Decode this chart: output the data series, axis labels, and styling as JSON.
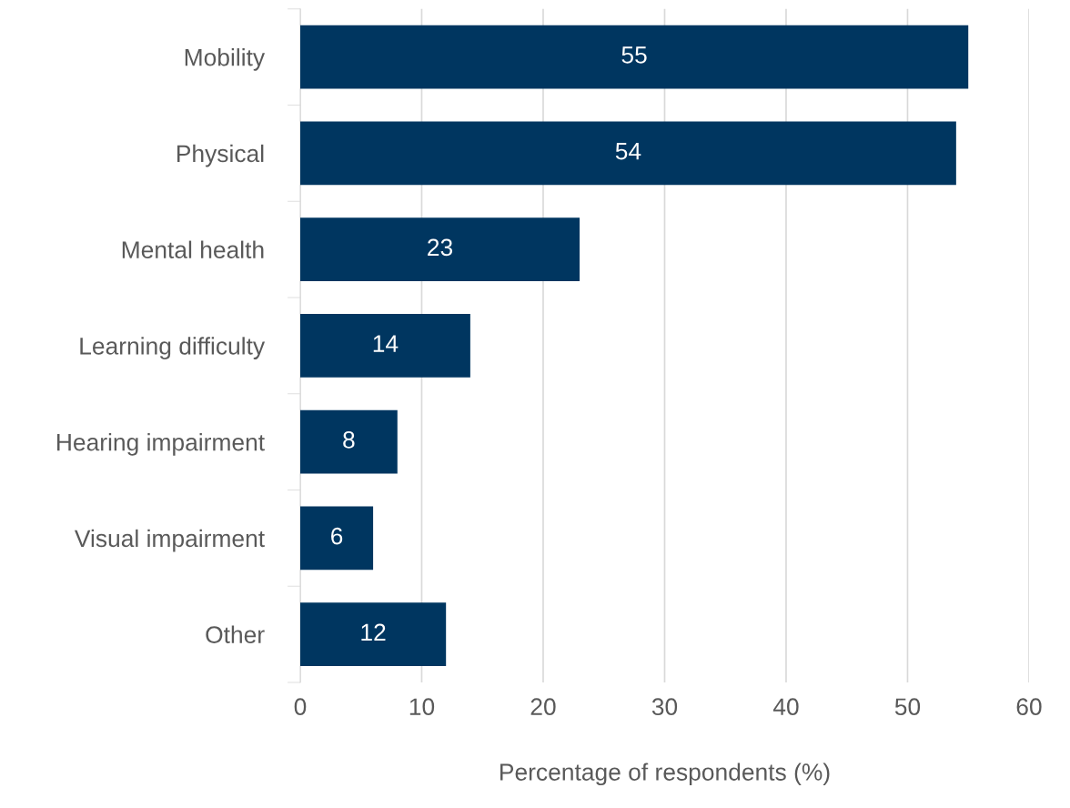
{
  "chart_data": {
    "type": "bar",
    "orientation": "horizontal",
    "xlabel": "Percentage of respondents (%)",
    "categories": [
      "Mobility",
      "Physical",
      "Mental health",
      "Learning difficulty",
      "Hearing impairment",
      "Visual impairment",
      "Other"
    ],
    "values": [
      55,
      54,
      23,
      14,
      8,
      6,
      12
    ],
    "color": "#003660",
    "xlim": [
      0,
      60
    ],
    "xticks": [
      0,
      10,
      20,
      30,
      40,
      50,
      60
    ],
    "grid": "x",
    "data_labels": true
  }
}
